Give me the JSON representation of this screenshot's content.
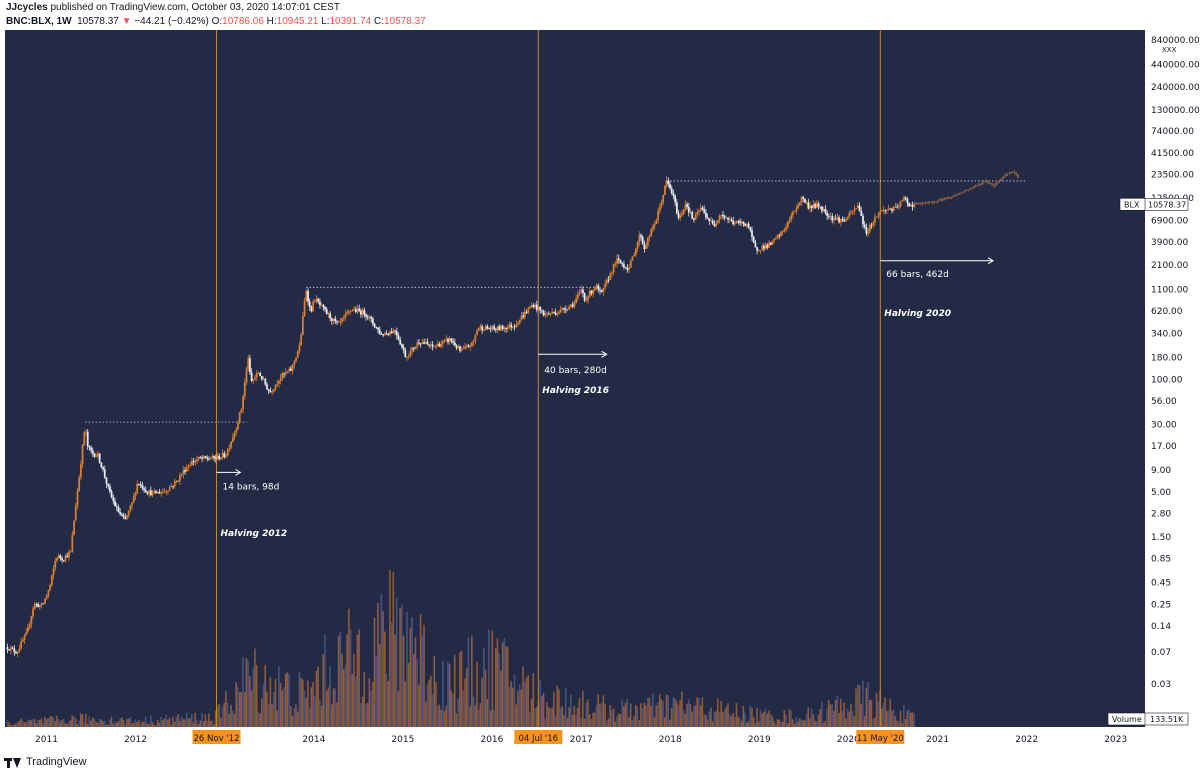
{
  "header": {
    "author": "JJcycles",
    "published": " published on TradingView.com, October 03, 2020 14:07:01 CEST",
    "symbol": "BNC:BLX, 1W",
    "last": "10578.37",
    "change_arrow": "▼",
    "change": "−44.21 (−0.42%)",
    "o_label": "O:",
    "o_value": "10786.06",
    "h_label": "H:",
    "h_value": "10945.21",
    "l_label": "L:",
    "l_value": "10391.74",
    "c_label": "C:",
    "c_value": "10578.37"
  },
  "footer": {
    "brand": "TradingView"
  },
  "colors": {
    "background": "#232a45",
    "candle_up": "#d97f2e",
    "candle_down": "#e8eaf2",
    "halving_line": "#c8892a",
    "badge": "#f7931a",
    "volume_up": "#a3633a",
    "volume_down": "#4b5a8a",
    "projection": "#8a6046"
  },
  "chart_data": {
    "type": "candlestick",
    "scale": "log",
    "timeframe": "1W",
    "x_axis_ticks": [
      "2011",
      "2012",
      "2013",
      "2014",
      "2015",
      "2016",
      "2017",
      "2018",
      "2019",
      "2020",
      "2021",
      "2022",
      "2023"
    ],
    "y_axis_ticks": [
      "840000.00",
      "440000.00",
      "240000.00",
      "130000.00",
      "74000.00",
      "41500.00",
      "23500.00",
      "12500.00",
      "6900.00",
      "3900.00",
      "2100.00",
      "1100.00",
      "620.00",
      "340.00",
      "180.00",
      "100.00",
      "56.00",
      "30.00",
      "17.00",
      "9.00",
      "5.00",
      "2.80",
      "1.50",
      "0.85",
      "0.45",
      "0.25",
      "0.14",
      "0.07",
      "0.03"
    ],
    "y_axis_unit": "XXX",
    "price_label": "BLX",
    "last_price": "10578.37",
    "volume_label": "Volume",
    "volume_value": "133.51K",
    "price_path": [
      [
        "2010-07-25",
        0.08
      ],
      [
        "2010-09-01",
        0.07
      ],
      [
        "2010-10-15",
        0.12
      ],
      [
        "2010-11-10",
        0.25
      ],
      [
        "2010-12-15",
        0.24
      ],
      [
        "2011-01-15",
        0.4
      ],
      [
        "2011-02-10",
        0.9
      ],
      [
        "2011-03-10",
        0.85
      ],
      [
        "2011-04-10",
        1.0
      ],
      [
        "2011-04-28",
        3.0
      ],
      [
        "2011-05-15",
        7.5
      ],
      [
        "2011-06-08",
        29.0
      ],
      [
        "2011-06-20",
        16.0
      ],
      [
        "2011-07-10",
        14.0
      ],
      [
        "2011-08-01",
        13.0
      ],
      [
        "2011-08-20",
        9.0
      ],
      [
        "2011-09-15",
        5.0
      ],
      [
        "2011-10-15",
        3.2
      ],
      [
        "2011-11-18",
        2.3
      ],
      [
        "2011-12-20",
        3.8
      ],
      [
        "2012-01-10",
        6.5
      ],
      [
        "2012-02-20",
        5.0
      ],
      [
        "2012-03-15",
        4.8
      ],
      [
        "2012-05-01",
        5.1
      ],
      [
        "2012-06-15",
        6.5
      ],
      [
        "2012-07-20",
        9.0
      ],
      [
        "2012-08-17",
        11.0
      ],
      [
        "2012-09-15",
        12.0
      ],
      [
        "2012-11-28",
        12.3
      ],
      [
        "2013-01-05",
        13.5
      ],
      [
        "2013-02-15",
        27.0
      ],
      [
        "2013-03-10",
        46.0
      ],
      [
        "2013-04-09",
        200.0
      ],
      [
        "2013-04-16",
        90.0
      ],
      [
        "2013-05-20",
        120.0
      ],
      [
        "2013-07-05",
        70.0
      ],
      [
        "2013-08-15",
        105.0
      ],
      [
        "2013-10-01",
        130.0
      ],
      [
        "2013-11-05",
        250.0
      ],
      [
        "2013-11-30",
        1130.0
      ],
      [
        "2013-12-18",
        600.0
      ],
      [
        "2014-01-05",
        850.0
      ],
      [
        "2014-02-25",
        570.0
      ],
      [
        "2014-04-10",
        420.0
      ],
      [
        "2014-06-05",
        650.0
      ],
      [
        "2014-08-01",
        580.0
      ],
      [
        "2014-10-05",
        330.0
      ],
      [
        "2014-12-01",
        370.0
      ],
      [
        "2015-01-14",
        180.0
      ],
      [
        "2015-03-10",
        280.0
      ],
      [
        "2015-05-01",
        235.0
      ],
      [
        "2015-07-15",
        290.0
      ],
      [
        "2015-08-25",
        210.0
      ],
      [
        "2015-10-15",
        260.0
      ],
      [
        "2015-11-04",
        400.0
      ],
      [
        "2016-01-15",
        380.0
      ],
      [
        "2016-04-01",
        420.0
      ],
      [
        "2016-06-17",
        740.0
      ],
      [
        "2016-07-09",
        650.0
      ],
      [
        "2016-08-05",
        560.0
      ],
      [
        "2016-10-01",
        610.0
      ],
      [
        "2016-12-01",
        750.0
      ],
      [
        "2017-01-04",
        1100.0
      ],
      [
        "2017-01-15",
        830.0
      ],
      [
        "2017-03-01",
        1200.0
      ],
      [
        "2017-03-24",
        950.0
      ],
      [
        "2017-05-25",
        2400.0
      ],
      [
        "2017-07-15",
        1900.0
      ],
      [
        "2017-09-01",
        4900.0
      ],
      [
        "2017-09-15",
        3200.0
      ],
      [
        "2017-11-08",
        7500.0
      ],
      [
        "2017-12-17",
        19500.0
      ],
      [
        "2018-01-10",
        14000.0
      ],
      [
        "2018-02-06",
        7000.0
      ],
      [
        "2018-03-05",
        11000.0
      ],
      [
        "2018-04-06",
        6800.0
      ],
      [
        "2018-05-05",
        9600.0
      ],
      [
        "2018-06-28",
        5900.0
      ],
      [
        "2018-07-24",
        8300.0
      ],
      [
        "2018-09-15",
        6500.0
      ],
      [
        "2018-11-14",
        6300.0
      ],
      [
        "2018-12-15",
        3200.0
      ],
      [
        "2019-02-15",
        3600.0
      ],
      [
        "2019-04-05",
        5000.0
      ],
      [
        "2019-06-26",
        12800.0
      ],
      [
        "2019-07-20",
        10000.0
      ],
      [
        "2019-09-01",
        10200.0
      ],
      [
        "2019-10-25",
        7400.0
      ],
      [
        "2019-12-15",
        6800.0
      ],
      [
        "2020-02-12",
        10300.0
      ],
      [
        "2020-03-12",
        4900.0
      ],
      [
        "2020-04-15",
        7000.0
      ],
      [
        "2020-05-11",
        8700.0
      ],
      [
        "2020-06-15",
        9400.0
      ],
      [
        "2020-07-10",
        9200.0
      ],
      [
        "2020-08-17",
        12300.0
      ],
      [
        "2020-09-10",
        10300.0
      ],
      [
        "2020-10-02",
        10578.37
      ]
    ],
    "projection_path": [
      [
        "2020-10-02",
        10578.37
      ],
      [
        "2020-12-15",
        11200.0
      ],
      [
        "2021-03-01",
        13000.0
      ],
      [
        "2021-05-01",
        15500.0
      ],
      [
        "2021-07-15",
        19500.0
      ],
      [
        "2021-08-20",
        17500.0
      ],
      [
        "2021-10-01",
        22500.0
      ],
      [
        "2021-11-01",
        26000.0
      ],
      [
        "2021-12-01",
        21500.0
      ]
    ],
    "peak_levels": [
      {
        "price": 32.0,
        "from": "2011-06-08",
        "to": "2013-04-01"
      },
      {
        "price": 1160.0,
        "from": "2013-11-30",
        "to": "2017-03-01"
      },
      {
        "price": 19700.0,
        "from": "2017-12-17",
        "to": "2022-01-01"
      }
    ],
    "halvings": [
      {
        "date": "2012-11-28",
        "badge": "26 Nov '12",
        "label": "Halving 2012",
        "label_price": 1.55
      },
      {
        "date": "2016-07-09",
        "badge": "04 Jul '16",
        "label": "Halving 2016",
        "label_price": 70.0
      },
      {
        "date": "2020-05-11",
        "badge": "11 May '20",
        "label": "Halving 2020",
        "label_price": 540.0
      }
    ],
    "bar_count_annotations": [
      {
        "text": "14 bars, 98d",
        "date": "2012-11-28",
        "end": "2013-03-06",
        "arrow_price": 8.4,
        "text_price": 5.3
      },
      {
        "text": "40 bars, 280d",
        "date": "2016-07-09",
        "end": "2017-04-15",
        "arrow_price": 195.0,
        "text_price": 118.0
      },
      {
        "text": "66 bars, 462d",
        "date": "2020-05-11",
        "end": "2021-08-16",
        "arrow_price": 2350.0,
        "text_price": 1520.0
      }
    ],
    "volume": {
      "scale_max": 100,
      "range": [
        "2010-07-25",
        "2020-10-02"
      ],
      "profile": [
        [
          "2010-07-25",
          4
        ],
        [
          "2011-06-01",
          8
        ],
        [
          "2012-01-01",
          6
        ],
        [
          "2012-11-28",
          10
        ],
        [
          "2013-04-10",
          50
        ],
        [
          "2013-12-01",
          30
        ],
        [
          "2014-02-20",
          55
        ],
        [
          "2015-01-14",
          100
        ],
        [
          "2015-06-01",
          42
        ],
        [
          "2016-01-15",
          60
        ],
        [
          "2016-07-09",
          30
        ],
        [
          "2017-06-01",
          16
        ],
        [
          "2018-02-06",
          22
        ],
        [
          "2018-12-15",
          12
        ],
        [
          "2019-07-01",
          10
        ],
        [
          "2020-03-12",
          28
        ],
        [
          "2020-10-02",
          8
        ]
      ]
    }
  }
}
